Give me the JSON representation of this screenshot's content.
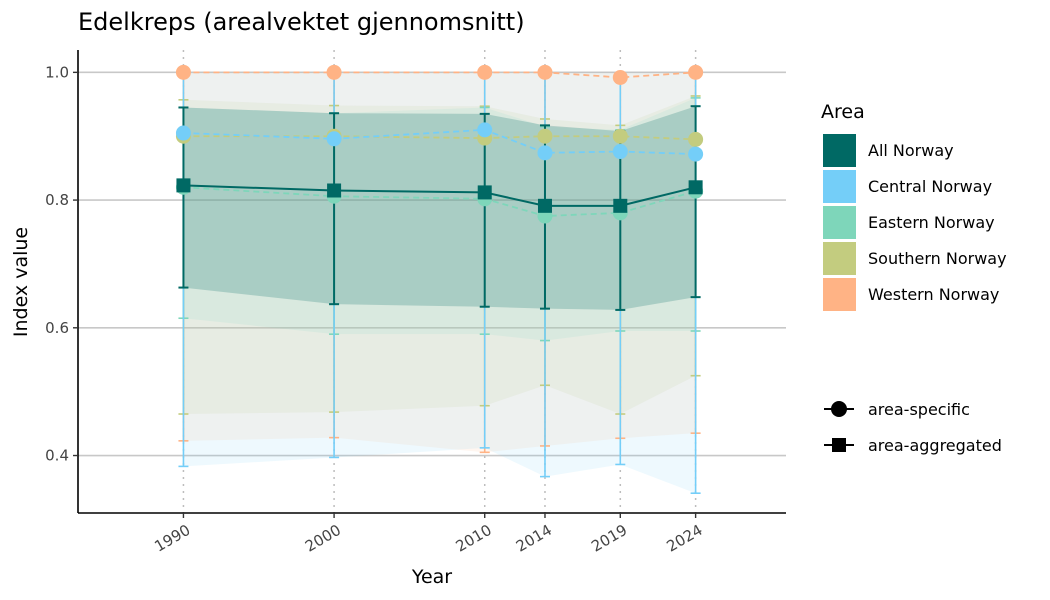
{
  "chart_data": {
    "type": "line",
    "title": "Edelkreps (arealvektet gjennomsnitt)",
    "xlabel": "Year",
    "ylabel": "Index value",
    "x": [
      1990,
      2000,
      2010,
      2014,
      2019,
      2024
    ],
    "xlim": [
      1983,
      2030
    ],
    "ylim": [
      0.31,
      1.035
    ],
    "yticks": [
      0.4,
      0.6,
      0.8,
      1.0
    ],
    "ytick_labels": [
      "0.4",
      "0.6",
      "0.8",
      "1.0"
    ],
    "grid": "horizontal major lines; dotted vertical lines at each year",
    "legend": {
      "title": "Area",
      "position": "right",
      "shape_entries": [
        {
          "label": "area-specific",
          "shape": "circle"
        },
        {
          "label": "area-aggregated",
          "shape": "square"
        }
      ]
    },
    "series": [
      {
        "name": "Western Norway",
        "color": "#FFB385",
        "style": "dashed",
        "marker": "circle",
        "values": [
          1.0,
          1.0,
          1.0,
          1.0,
          0.992,
          1.0
        ],
        "lower": [
          0.423,
          0.428,
          0.405,
          0.415,
          0.427,
          0.435
        ],
        "upper": [
          1.0,
          1.0,
          1.0,
          1.0,
          1.0,
          1.0
        ]
      },
      {
        "name": "Southern Norway",
        "color": "#C3CC7F",
        "style": "dashed",
        "marker": "circle",
        "values": [
          0.9,
          0.9,
          0.897,
          0.9,
          0.9,
          0.895
        ],
        "lower": [
          0.465,
          0.468,
          0.478,
          0.51,
          0.465,
          0.525
        ],
        "upper": [
          0.957,
          0.948,
          0.947,
          0.927,
          0.917,
          0.963
        ]
      },
      {
        "name": "Eastern Norway",
        "color": "#7ED6BA",
        "style": "dashed",
        "marker": "circle",
        "values": [
          0.82,
          0.806,
          0.802,
          0.775,
          0.78,
          0.814
        ],
        "lower": [
          0.615,
          0.59,
          0.59,
          0.58,
          0.595,
          0.595
        ],
        "upper": [
          0.945,
          0.936,
          0.945,
          0.915,
          0.91,
          0.96
        ]
      },
      {
        "name": "Central Norway",
        "color": "#74CEF8",
        "style": "dashed",
        "marker": "circle",
        "values": [
          0.905,
          0.896,
          0.91,
          0.874,
          0.876,
          0.872
        ],
        "lower": [
          0.383,
          0.397,
          0.412,
          0.367,
          0.386,
          0.341
        ],
        "upper": [
          1.0,
          1.0,
          1.0,
          1.0,
          1.0,
          1.0
        ]
      },
      {
        "name": "All Norway",
        "color": "#006964",
        "style": "solid",
        "marker": "square",
        "values": [
          0.823,
          0.815,
          0.812,
          0.791,
          0.791,
          0.82
        ],
        "lower": [
          0.663,
          0.637,
          0.633,
          0.63,
          0.628,
          0.648
        ],
        "upper": [
          0.945,
          0.936,
          0.935,
          0.917,
          0.908,
          0.947
        ]
      }
    ]
  },
  "legend_area_order": [
    "All Norway",
    "Central Norway",
    "Eastern Norway",
    "Southern Norway",
    "Western Norway"
  ]
}
